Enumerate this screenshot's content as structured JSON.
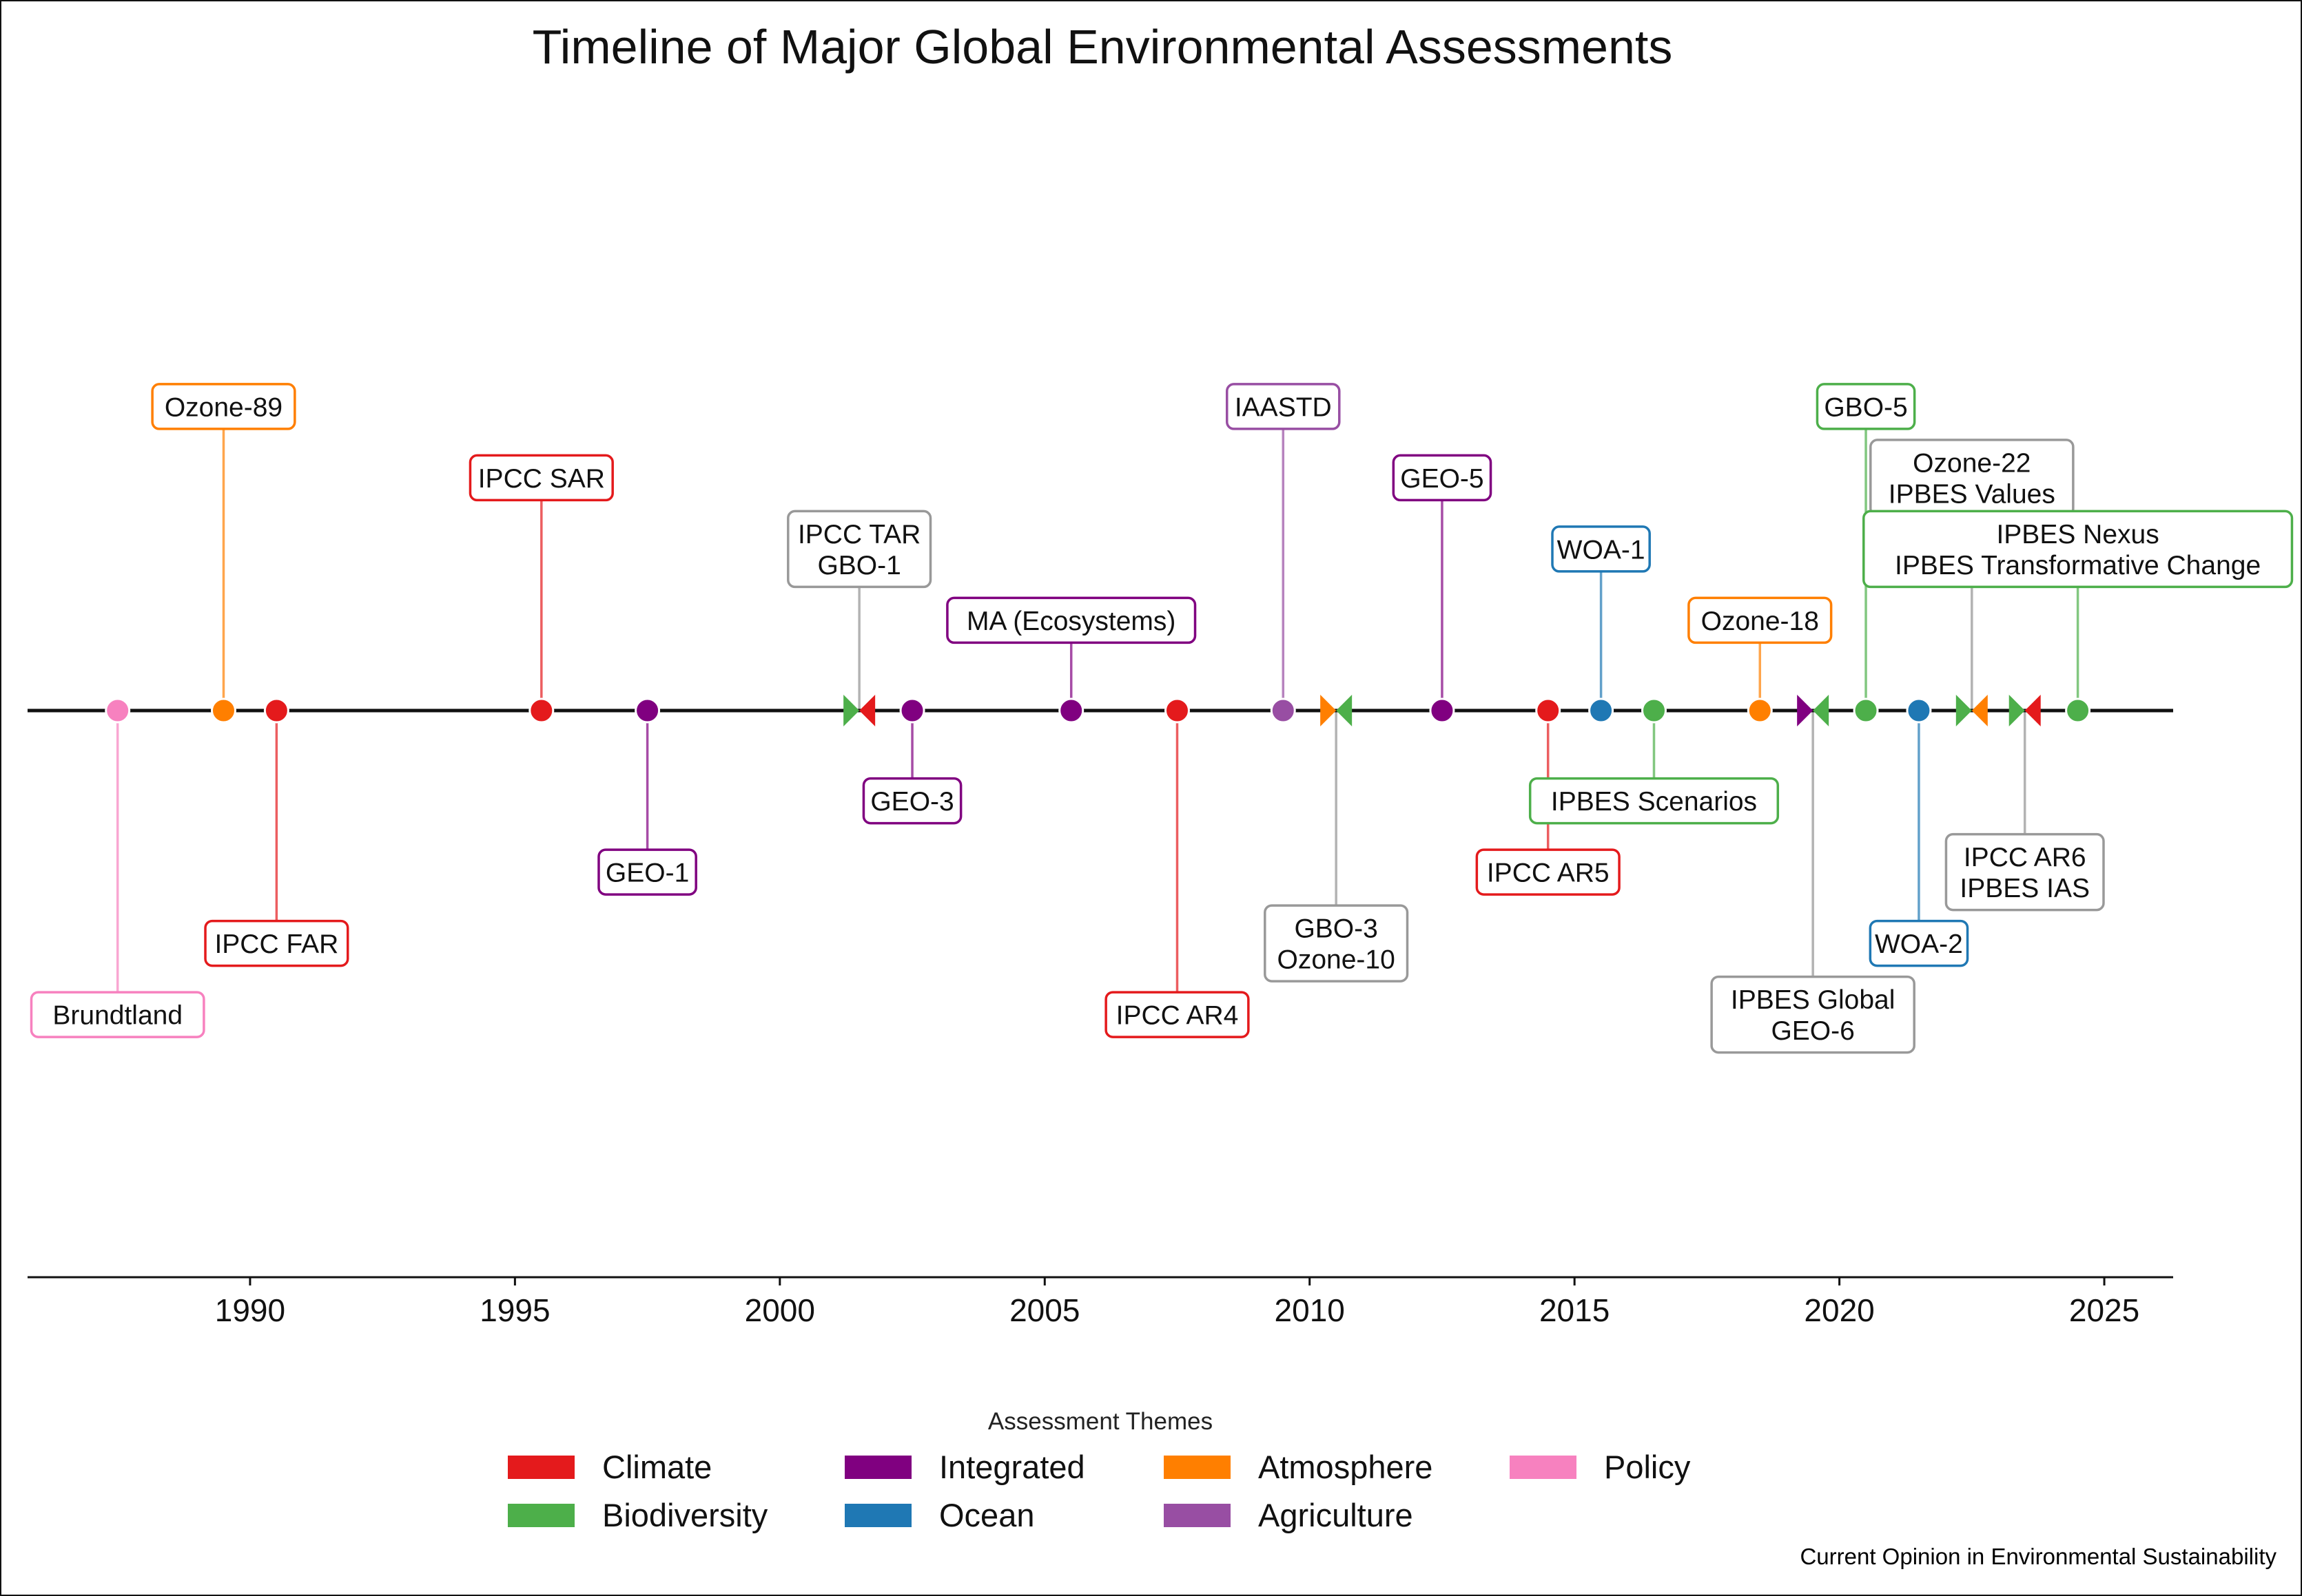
{
  "chart_data": {
    "type": "timeline",
    "title": "Timeline of Major Global Environmental Assessments",
    "xlabel": "",
    "ylabel": "",
    "xlim": [
      1985.8,
      2026.3
    ],
    "x_ticks": [
      1990,
      1995,
      2000,
      2005,
      2010,
      2015,
      2020,
      2025
    ],
    "grid": false,
    "legend": {
      "title": "Assessment Themes",
      "placement": "bottom-center",
      "items": [
        {
          "name": "Climate",
          "color": "#e41a1c"
        },
        {
          "name": "Biodiversity",
          "color": "#4daf4a"
        },
        {
          "name": "Integrated",
          "color": "#800080"
        },
        {
          "name": "Ocean",
          "color": "#1f78b4"
        },
        {
          "name": "Atmosphere",
          "color": "#ff7f00"
        },
        {
          "name": "Agriculture",
          "color": "#984ea3"
        },
        {
          "name": "Policy",
          "color": "#f781bf"
        }
      ]
    },
    "themes": {
      "Climate": "#e41a1c",
      "Biodiversity": "#4daf4a",
      "Integrated": "#800080",
      "Ocean": "#1f78b4",
      "Atmosphere": "#ff7f00",
      "Agriculture": "#984ea3",
      "Policy": "#f781bf"
    },
    "neutral_color": "#999999",
    "events": [
      {
        "year": 1987.5,
        "lines": [
          "Brundtland"
        ],
        "themes": [
          "Policy"
        ],
        "stem": -3.2
      },
      {
        "year": 1989.5,
        "lines": [
          "Ozone-89"
        ],
        "themes": [
          "Atmosphere"
        ],
        "stem": 3.2
      },
      {
        "year": 1990.5,
        "lines": [
          "IPCC FAR"
        ],
        "themes": [
          "Climate"
        ],
        "stem": -2.45
      },
      {
        "year": 1995.5,
        "lines": [
          "IPCC SAR"
        ],
        "themes": [
          "Climate"
        ],
        "stem": 2.45
      },
      {
        "year": 1997.5,
        "lines": [
          "GEO-1"
        ],
        "themes": [
          "Integrated"
        ],
        "stem": -1.7
      },
      {
        "year": 2001.5,
        "lines": [
          "IPCC TAR",
          "GBO-1"
        ],
        "themes": [
          "Biodiversity",
          "Climate"
        ],
        "stem": 1.7
      },
      {
        "year": 2002.5,
        "lines": [
          "GEO-3"
        ],
        "themes": [
          "Integrated"
        ],
        "stem": -0.95
      },
      {
        "year": 2005.5,
        "lines": [
          "MA (Ecosystems)"
        ],
        "themes": [
          "Integrated"
        ],
        "stem": 0.95
      },
      {
        "year": 2007.5,
        "lines": [
          "IPCC AR4"
        ],
        "themes": [
          "Climate"
        ],
        "stem": -3.2
      },
      {
        "year": 2009.5,
        "lines": [
          "IAASTD"
        ],
        "themes": [
          "Agriculture"
        ],
        "stem": 3.2
      },
      {
        "year": 2010.5,
        "lines": [
          "GBO-3",
          "Ozone-10"
        ],
        "themes": [
          "Atmosphere",
          "Biodiversity"
        ],
        "stem": -2.45
      },
      {
        "year": 2012.5,
        "lines": [
          "GEO-5"
        ],
        "themes": [
          "Integrated"
        ],
        "stem": 2.45
      },
      {
        "year": 2014.5,
        "lines": [
          "IPCC AR5"
        ],
        "themes": [
          "Climate"
        ],
        "stem": -1.7
      },
      {
        "year": 2015.5,
        "lines": [
          "WOA-1"
        ],
        "themes": [
          "Ocean"
        ],
        "stem": 1.7
      },
      {
        "year": 2016.5,
        "lines": [
          "IPBES Scenarios"
        ],
        "themes": [
          "Biodiversity"
        ],
        "stem": -0.95
      },
      {
        "year": 2018.5,
        "lines": [
          "Ozone-18"
        ],
        "themes": [
          "Atmosphere"
        ],
        "stem": 0.95
      },
      {
        "year": 2019.5,
        "lines": [
          "IPBES Global",
          "GEO-6"
        ],
        "themes": [
          "Integrated",
          "Biodiversity"
        ],
        "stem": -3.2
      },
      {
        "year": 2020.5,
        "lines": [
          "GBO-5"
        ],
        "themes": [
          "Biodiversity"
        ],
        "stem": 3.2
      },
      {
        "year": 2021.5,
        "lines": [
          "WOA-2"
        ],
        "themes": [
          "Ocean"
        ],
        "stem": -2.45
      },
      {
        "year": 2022.5,
        "lines": [
          "Ozone-22",
          "IPBES Values"
        ],
        "themes": [
          "Biodiversity",
          "Atmosphere"
        ],
        "stem": 2.45
      },
      {
        "year": 2023.5,
        "lines": [
          "IPCC AR6",
          "IPBES IAS"
        ],
        "themes": [
          "Biodiversity",
          "Climate"
        ],
        "stem": -1.7
      },
      {
        "year": 2024.5,
        "lines": [
          "IPBES Nexus",
          "IPBES Transformative Change"
        ],
        "themes": [
          "Biodiversity"
        ],
        "stem": 1.7
      }
    ]
  },
  "footer": {
    "source": "Current Opinion in Environmental Sustainability"
  }
}
